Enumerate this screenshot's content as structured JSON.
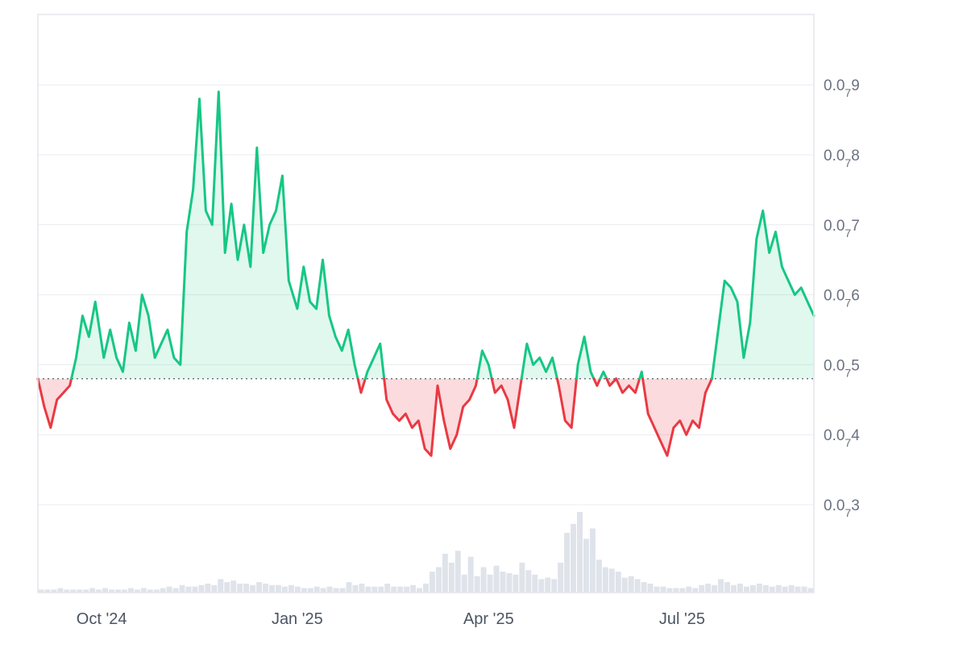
{
  "chart_data": {
    "type": "area",
    "baseline": 0.0748,
    "ylim": [
      0.0725,
      0.08
    ],
    "y_ticks": [
      {
        "value": 0.073,
        "prefix": "0.0",
        "sub": "7",
        "digit": "3"
      },
      {
        "value": 0.074,
        "prefix": "0.0",
        "sub": "7",
        "digit": "4"
      },
      {
        "value": 0.075,
        "prefix": "0.0",
        "sub": "7",
        "digit": "5"
      },
      {
        "value": 0.076,
        "prefix": "0.0",
        "sub": "7",
        "digit": "6"
      },
      {
        "value": 0.077,
        "prefix": "0.0",
        "sub": "7",
        "digit": "7"
      },
      {
        "value": 0.078,
        "prefix": "0.0",
        "sub": "7",
        "digit": "8"
      },
      {
        "value": 0.079,
        "prefix": "0.0",
        "sub": "7",
        "digit": "9"
      }
    ],
    "x_ticks": [
      {
        "label": "Oct '24",
        "date": "2024-10-01"
      },
      {
        "label": "Jan '25",
        "date": "2025-01-01"
      },
      {
        "label": "Apr '25",
        "date": "2025-04-01"
      },
      {
        "label": "Jul '25",
        "date": "2025-07-01"
      }
    ],
    "xlim": [
      "2024-09-01",
      "2025-09-01"
    ],
    "series": [
      {
        "values": [
          [
            "2024-09-01",
            0.0748
          ],
          [
            "2024-09-04",
            0.0744
          ],
          [
            "2024-09-07",
            0.0741
          ],
          [
            "2024-09-10",
            0.0745
          ],
          [
            "2024-09-13",
            0.0746
          ],
          [
            "2024-09-16",
            0.0747
          ],
          [
            "2024-09-19",
            0.0751
          ],
          [
            "2024-09-22",
            0.0757
          ],
          [
            "2024-09-25",
            0.0754
          ],
          [
            "2024-09-28",
            0.0759
          ],
          [
            "2024-10-02",
            0.0751
          ],
          [
            "2024-10-05",
            0.0755
          ],
          [
            "2024-10-08",
            0.0751
          ],
          [
            "2024-10-11",
            0.0749
          ],
          [
            "2024-10-14",
            0.0756
          ],
          [
            "2024-10-17",
            0.0752
          ],
          [
            "2024-10-20",
            0.076
          ],
          [
            "2024-10-23",
            0.0757
          ],
          [
            "2024-10-26",
            0.0751
          ],
          [
            "2024-10-29",
            0.0753
          ],
          [
            "2024-11-01",
            0.0755
          ],
          [
            "2024-11-04",
            0.0751
          ],
          [
            "2024-11-07",
            0.075
          ],
          [
            "2024-11-10",
            0.0769
          ],
          [
            "2024-11-13",
            0.0775
          ],
          [
            "2024-11-16",
            0.0788
          ],
          [
            "2024-11-19",
            0.0772
          ],
          [
            "2024-11-22",
            0.077
          ],
          [
            "2024-11-25",
            0.0789
          ],
          [
            "2024-11-28",
            0.0766
          ],
          [
            "2024-12-01",
            0.0773
          ],
          [
            "2024-12-04",
            0.0765
          ],
          [
            "2024-12-07",
            0.077
          ],
          [
            "2024-12-10",
            0.0764
          ],
          [
            "2024-12-13",
            0.0781
          ],
          [
            "2024-12-16",
            0.0766
          ],
          [
            "2024-12-19",
            0.077
          ],
          [
            "2024-12-22",
            0.0772
          ],
          [
            "2024-12-25",
            0.0777
          ],
          [
            "2024-12-28",
            0.0762
          ],
          [
            "2025-01-01",
            0.0758
          ],
          [
            "2025-01-04",
            0.0764
          ],
          [
            "2025-01-07",
            0.0759
          ],
          [
            "2025-01-10",
            0.0758
          ],
          [
            "2025-01-13",
            0.0765
          ],
          [
            "2025-01-16",
            0.0757
          ],
          [
            "2025-01-19",
            0.0754
          ],
          [
            "2025-01-22",
            0.0752
          ],
          [
            "2025-01-25",
            0.0755
          ],
          [
            "2025-01-28",
            0.075
          ],
          [
            "2025-01-31",
            0.0746
          ],
          [
            "2025-02-03",
            0.0749
          ],
          [
            "2025-02-06",
            0.0751
          ],
          [
            "2025-02-09",
            0.0753
          ],
          [
            "2025-02-12",
            0.0745
          ],
          [
            "2025-02-15",
            0.0743
          ],
          [
            "2025-02-18",
            0.0742
          ],
          [
            "2025-02-21",
            0.0743
          ],
          [
            "2025-02-24",
            0.0741
          ],
          [
            "2025-02-27",
            0.0742
          ],
          [
            "2025-03-02",
            0.0738
          ],
          [
            "2025-03-05",
            0.0737
          ],
          [
            "2025-03-08",
            0.0747
          ],
          [
            "2025-03-11",
            0.0742
          ],
          [
            "2025-03-14",
            0.0738
          ],
          [
            "2025-03-17",
            0.074
          ],
          [
            "2025-03-20",
            0.0744
          ],
          [
            "2025-03-23",
            0.0745
          ],
          [
            "2025-03-26",
            0.0747
          ],
          [
            "2025-03-29",
            0.0752
          ],
          [
            "2025-04-01",
            0.075
          ],
          [
            "2025-04-04",
            0.0746
          ],
          [
            "2025-04-07",
            0.0747
          ],
          [
            "2025-04-10",
            0.0745
          ],
          [
            "2025-04-13",
            0.0741
          ],
          [
            "2025-04-16",
            0.0747
          ],
          [
            "2025-04-19",
            0.0753
          ],
          [
            "2025-04-22",
            0.075
          ],
          [
            "2025-04-25",
            0.0751
          ],
          [
            "2025-04-28",
            0.0749
          ],
          [
            "2025-05-01",
            0.0751
          ],
          [
            "2025-05-04",
            0.0747
          ],
          [
            "2025-05-07",
            0.0742
          ],
          [
            "2025-05-10",
            0.0741
          ],
          [
            "2025-05-13",
            0.075
          ],
          [
            "2025-05-16",
            0.0754
          ],
          [
            "2025-05-19",
            0.0749
          ],
          [
            "2025-05-22",
            0.0747
          ],
          [
            "2025-05-25",
            0.0749
          ],
          [
            "2025-05-28",
            0.0747
          ],
          [
            "2025-05-31",
            0.0748
          ],
          [
            "2025-06-03",
            0.0746
          ],
          [
            "2025-06-06",
            0.0747
          ],
          [
            "2025-06-09",
            0.0746
          ],
          [
            "2025-06-12",
            0.0749
          ],
          [
            "2025-06-15",
            0.0743
          ],
          [
            "2025-06-18",
            0.0741
          ],
          [
            "2025-06-21",
            0.0739
          ],
          [
            "2025-06-24",
            0.0737
          ],
          [
            "2025-06-27",
            0.0741
          ],
          [
            "2025-06-30",
            0.0742
          ],
          [
            "2025-07-03",
            0.074
          ],
          [
            "2025-07-06",
            0.0742
          ],
          [
            "2025-07-09",
            0.0741
          ],
          [
            "2025-07-12",
            0.0746
          ],
          [
            "2025-07-15",
            0.0748
          ],
          [
            "2025-07-18",
            0.0755
          ],
          [
            "2025-07-21",
            0.0762
          ],
          [
            "2025-07-24",
            0.0761
          ],
          [
            "2025-07-27",
            0.0759
          ],
          [
            "2025-07-30",
            0.0751
          ],
          [
            "2025-08-02",
            0.0756
          ],
          [
            "2025-08-05",
            0.0768
          ],
          [
            "2025-08-08",
            0.0772
          ],
          [
            "2025-08-11",
            0.0766
          ],
          [
            "2025-08-14",
            0.0769
          ],
          [
            "2025-08-17",
            0.0764
          ],
          [
            "2025-08-20",
            0.0762
          ],
          [
            "2025-08-23",
            0.076
          ],
          [
            "2025-08-26",
            0.0761
          ],
          [
            "2025-09-01",
            0.0757
          ]
        ]
      }
    ],
    "volume": [
      2,
      2,
      2,
      3,
      2,
      2,
      2,
      2,
      3,
      2,
      3,
      2,
      2,
      2,
      3,
      2,
      3,
      2,
      2,
      3,
      4,
      3,
      5,
      4,
      4,
      5,
      6,
      5,
      9,
      7,
      8,
      6,
      6,
      5,
      7,
      6,
      5,
      5,
      4,
      5,
      4,
      3,
      3,
      4,
      3,
      4,
      3,
      3,
      7,
      5,
      6,
      4,
      4,
      4,
      6,
      4,
      4,
      4,
      5,
      3,
      6,
      14,
      17,
      26,
      20,
      28,
      12,
      24,
      11,
      17,
      12,
      18,
      14,
      13,
      12,
      20,
      15,
      12,
      9,
      10,
      9,
      20,
      40,
      46,
      54,
      36,
      43,
      22,
      17,
      16,
      14,
      10,
      11,
      9,
      7,
      6,
      4,
      4,
      3,
      3,
      3,
      4,
      3,
      5,
      6,
      5,
      9,
      7,
      5,
      6,
      4,
      5,
      6,
      5,
      4,
      5,
      4,
      5,
      4,
      4,
      3
    ],
    "colors": {
      "up": "#16c784",
      "down": "#ea3943",
      "up_fill": "rgba(22,199,132,0.13)",
      "down_fill": "rgba(234,57,67,0.18)",
      "volume": "#dfe3ea"
    },
    "grid": true
  }
}
